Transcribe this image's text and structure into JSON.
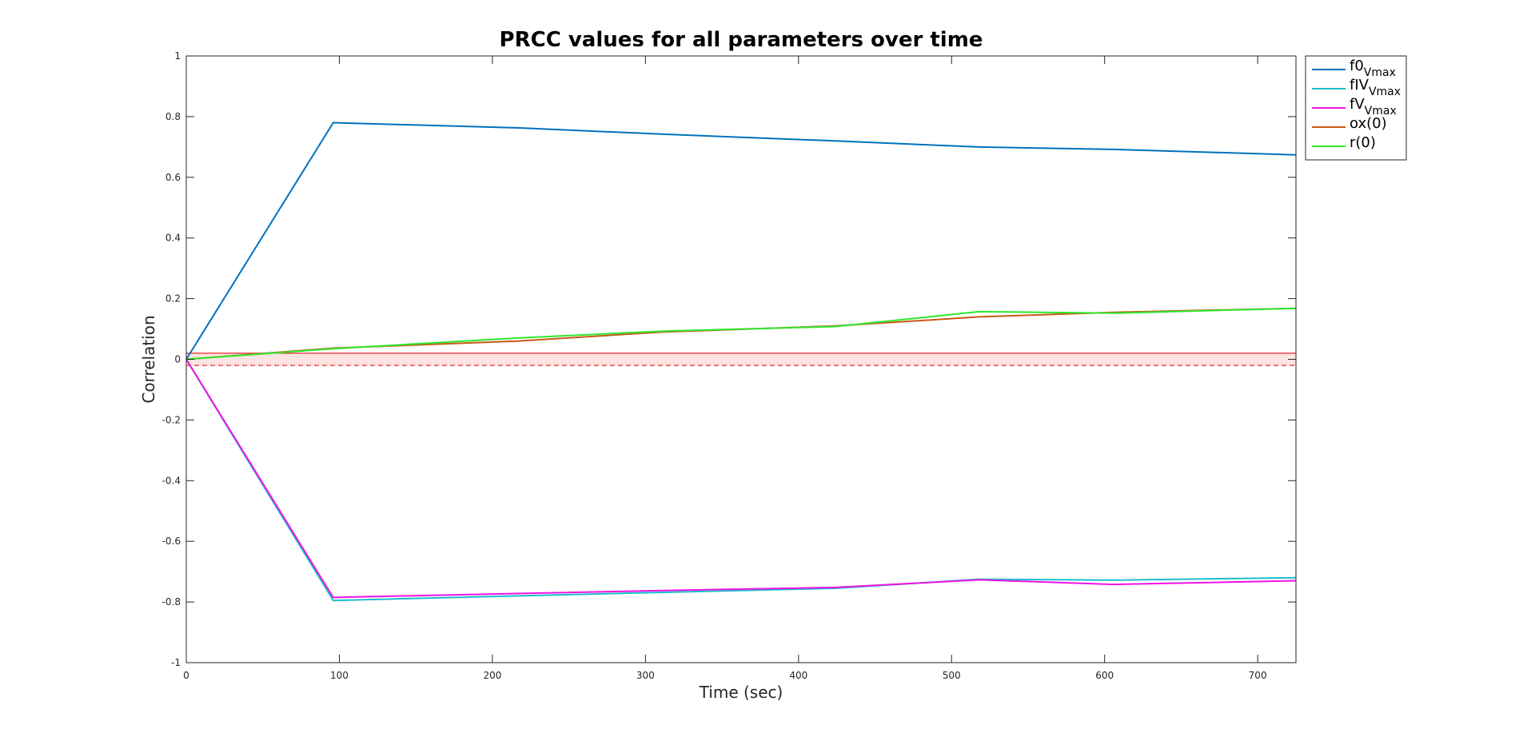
{
  "chart_data": {
    "type": "line",
    "title": "PRCC values for all parameters over time",
    "xlabel": "Time (sec)",
    "ylabel": "Correlation",
    "xlim": [
      0,
      725
    ],
    "ylim": [
      -1,
      1
    ],
    "xticks": [
      0,
      100,
      200,
      300,
      400,
      500,
      600,
      700
    ],
    "yticks": [
      -1,
      -0.8,
      -0.6,
      -0.4,
      -0.2,
      0,
      0.2,
      0.4,
      0.6,
      0.8,
      1
    ],
    "ytick_labels": [
      "-1",
      "-0.8",
      "-0.6",
      "-0.4",
      "-0.2",
      "0",
      "0.2",
      "0.4",
      "0.6",
      "0.8",
      "1"
    ],
    "grid": false,
    "legend_position": "outside-top-right",
    "threshold_band": {
      "lower": -0.02,
      "upper": 0.02,
      "line_color": "#e8262a",
      "fill_color": "#fde4e0"
    },
    "series": [
      {
        "name": "f0",
        "name_sub": "Vmax",
        "color": "#0072bd",
        "x": [
          0,
          96,
          216,
          312,
          424,
          518,
          606,
          725
        ],
        "y": [
          0,
          0.78,
          0.763,
          0.742,
          0.72,
          0.7,
          0.692,
          0.674
        ]
      },
      {
        "name": "fIV",
        "name_sub": "Vmax",
        "color": "#1cbfc9",
        "x": [
          0,
          96,
          216,
          312,
          424,
          518,
          606,
          725
        ],
        "y": [
          0,
          -0.795,
          -0.78,
          -0.768,
          -0.755,
          -0.725,
          -0.728,
          -0.72
        ]
      },
      {
        "name": "fV",
        "name_sub": "Vmax",
        "color": "#f012e5",
        "x": [
          0,
          96,
          216,
          312,
          424,
          518,
          606,
          725
        ],
        "y": [
          0,
          -0.785,
          -0.772,
          -0.762,
          -0.752,
          -0.727,
          -0.742,
          -0.73
        ]
      },
      {
        "name": "ox(0)",
        "name_sub": "",
        "color": "#c85a16",
        "x": [
          0,
          96,
          216,
          312,
          424,
          518,
          606,
          725
        ],
        "y": [
          0,
          0.037,
          0.06,
          0.09,
          0.11,
          0.14,
          0.155,
          0.168
        ]
      },
      {
        "name": "r(0)",
        "name_sub": "",
        "color": "#2ee82e",
        "x": [
          0,
          96,
          216,
          312,
          424,
          518,
          606,
          725
        ],
        "y": [
          0,
          0.035,
          0.07,
          0.093,
          0.108,
          0.157,
          0.152,
          0.168
        ]
      }
    ]
  }
}
